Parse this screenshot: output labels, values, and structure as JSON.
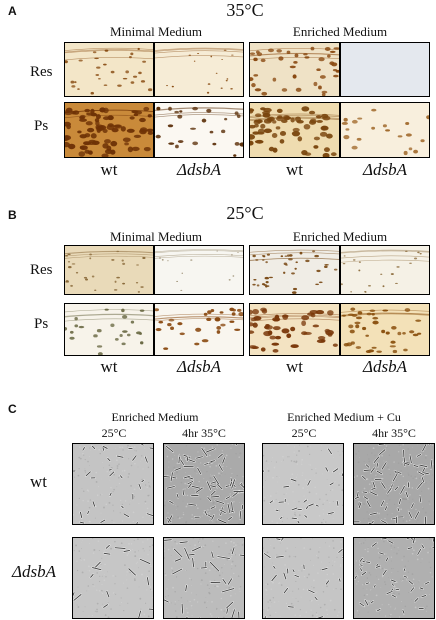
{
  "panels": {
    "A": {
      "letter": "A",
      "temperature": "35°C",
      "media": [
        "Minimal Medium",
        "Enriched Medium"
      ],
      "rows": [
        "Res",
        "Ps"
      ],
      "columns": [
        "wt",
        "ΔdsbA",
        "wt",
        "ΔdsbA"
      ]
    },
    "B": {
      "letter": "B",
      "temperature": "25°C",
      "media": [
        "Minimal Medium",
        "Enriched Medium"
      ],
      "rows": [
        "Res",
        "Ps"
      ],
      "columns": [
        "wt",
        "ΔdsbA",
        "wt",
        "ΔdsbA"
      ]
    },
    "C": {
      "letter": "C",
      "media": [
        "Enriched Medium",
        "Enriched Medium + Cu"
      ],
      "conditions": [
        "25°C",
        "4hr 35°C",
        "25°C",
        "4hr 35°C"
      ],
      "rows": [
        "wt",
        "ΔdsbA"
      ]
    }
  },
  "colors": {
    "plate_dark": "#7a3e0a",
    "plate_light": "#f4ead6",
    "micro_bg": "#b9b9b9"
  }
}
